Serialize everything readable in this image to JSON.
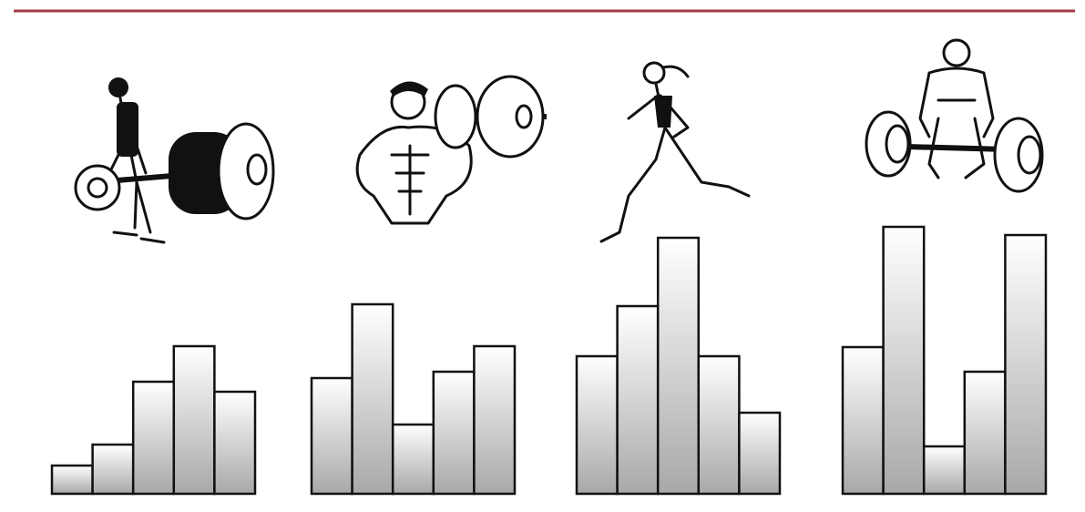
{
  "chart_data": [
    {
      "type": "bar",
      "values": [
        31,
        54,
        123,
        162,
        112
      ]
    },
    {
      "type": "bar",
      "values": [
        127,
        208,
        76,
        134,
        162
      ]
    },
    {
      "type": "bar",
      "values": [
        151,
        206,
        281,
        151,
        89
      ]
    },
    {
      "type": "bar",
      "values": [
        161,
        293,
        52,
        134,
        284
      ]
    }
  ]
}
